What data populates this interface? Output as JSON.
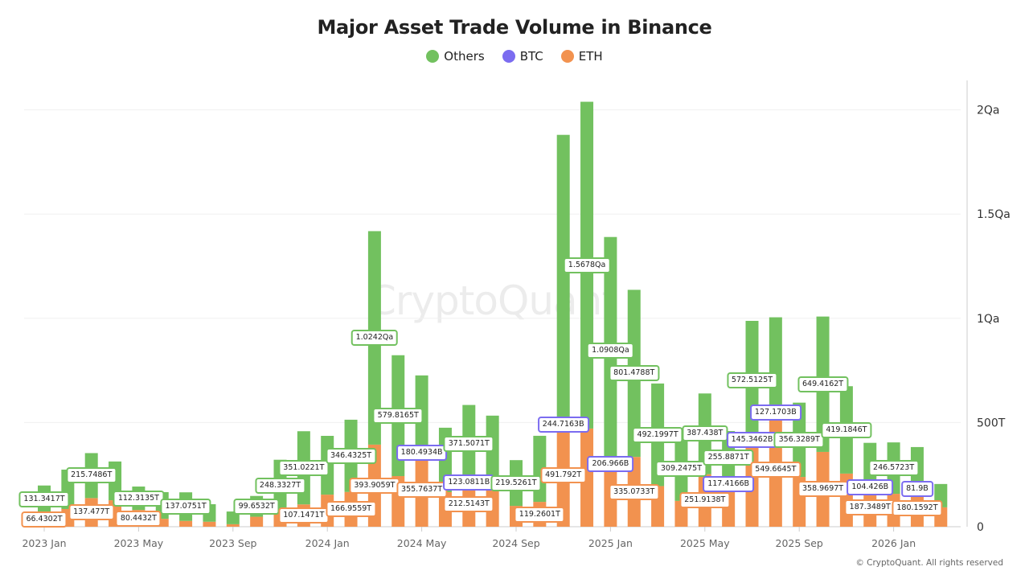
{
  "chart_data": {
    "type": "bar",
    "stacked": true,
    "title": "Major Asset Trade Volume in Binance",
    "unit": "T",
    "legend": {
      "placement": "top",
      "entries": [
        "Others",
        "BTC",
        "ETH"
      ]
    },
    "colors": {
      "Others": "#72c15f",
      "BTC": "#7b6cf0",
      "ETH": "#f2924f"
    },
    "grid": true,
    "ylim": [
      0,
      2150
    ],
    "y_ticks": [
      {
        "value": 0,
        "label": "0"
      },
      {
        "value": 500,
        "label": "500T"
      },
      {
        "value": 1000,
        "label": "1Qa"
      },
      {
        "value": 1500,
        "label": "1.5Qa"
      },
      {
        "value": 2000,
        "label": "2Qa"
      }
    ],
    "x_ticks": [
      {
        "index": 0,
        "label": "2023 Jan"
      },
      {
        "index": 4,
        "label": "2023 May"
      },
      {
        "index": 8,
        "label": "2023 Sep"
      },
      {
        "index": 12,
        "label": "2024 Jan"
      },
      {
        "index": 16,
        "label": "2024 May"
      },
      {
        "index": 20,
        "label": "2024 Sep"
      },
      {
        "index": 24,
        "label": "2025 Jan"
      },
      {
        "index": 28,
        "label": "2025 May"
      },
      {
        "index": 32,
        "label": "2025 Sep"
      },
      {
        "index": 36,
        "label": "2026 Jan"
      }
    ],
    "categories": [
      "2023-01",
      "2023-02",
      "2023-03",
      "2023-04",
      "2023-05",
      "2023-06",
      "2023-07",
      "2023-08",
      "2023-09",
      "2023-10",
      "2023-11",
      "2023-12",
      "2024-01",
      "2024-02",
      "2024-03",
      "2024-04",
      "2024-05",
      "2024-06",
      "2024-07",
      "2024-08",
      "2024-09",
      "2024-10",
      "2024-11",
      "2024-12",
      "2025-01",
      "2025-02",
      "2025-03",
      "2025-04",
      "2025-05",
      "2025-06",
      "2025-07",
      "2025-08",
      "2025-09",
      "2025-10",
      "2025-11",
      "2025-12",
      "2026-01",
      "2026-02",
      "2026-03"
    ],
    "series": [
      {
        "name": "ETH",
        "values": [
          66.4302,
          85,
          137.477,
          127,
          80.4432,
          38,
          28,
          24,
          12,
          48,
          73,
          107.1471,
          154,
          166.9559,
          393.9059,
          243,
          355.7637,
          166,
          212.5143,
          178,
          100,
          119.2601,
          491.792,
          471,
          299,
          335.0733,
          195,
          124,
          251.9138,
          203,
          415,
          549.6645,
          239,
          358.9697,
          255,
          187.3489,
          158,
          180.1592,
          93
        ],
        "labels": [
          "66.4302T",
          null,
          "137.477T",
          null,
          "80.4432T",
          null,
          null,
          null,
          null,
          null,
          null,
          "107.1471T",
          null,
          "166.9559T",
          "393.9059T",
          null,
          "355.7637T",
          null,
          "212.5143T",
          null,
          null,
          "119.2601T",
          "491.792T",
          null,
          null,
          "335.0733T",
          null,
          null,
          "251.9138T",
          null,
          null,
          "549.6645T",
          null,
          "358.9697T",
          null,
          "187.3489T",
          null,
          "180.1592T",
          null
        ]
      },
      {
        "name": "BTC",
        "values": [
          null,
          null,
          null,
          null,
          null,
          null,
          null,
          null,
          null,
          null,
          null,
          null,
          null,
          null,
          null,
          null,
          0.1805,
          null,
          0.1231,
          null,
          null,
          null,
          0.2447,
          null,
          0.207,
          null,
          null,
          null,
          null,
          0.1174,
          0.1453,
          0.1272,
          null,
          null,
          null,
          0.1044,
          null,
          0.0819,
          null
        ],
        "labels": [
          null,
          null,
          null,
          null,
          null,
          null,
          null,
          null,
          null,
          null,
          null,
          null,
          null,
          null,
          null,
          null,
          "180.4934B",
          null,
          "123.0811B",
          null,
          null,
          null,
          "244.7163B",
          null,
          "206.966B",
          null,
          null,
          null,
          null,
          "117.4166B",
          "145.3462B",
          "127.1703B",
          null,
          null,
          null,
          "104.426B",
          null,
          "81.9B",
          null
        ]
      },
      {
        "name": "Others",
        "values": [
          131.3417,
          189,
          215.7486,
          186,
          112.3135,
          128,
          137.0751,
          84,
          61,
          99.6532,
          248.3327,
          351.0221,
          282,
          346.4325,
          1024.2,
          579.8165,
          370,
          309,
          371.5071,
          355,
          219.5261,
          317,
          1388,
          1567.8,
          1090.8,
          801.4788,
          492.1997,
          309.2475,
          387.438,
          255.8871,
          572.5125,
          455,
          356.3289,
          649.4162,
          419.1846,
          215,
          246.5723,
          202,
          112
        ],
        "labels": [
          "131.3417T",
          null,
          "215.7486T",
          null,
          "112.3135T",
          null,
          "137.0751T",
          null,
          null,
          "99.6532T",
          "248.3327T",
          "351.0221T",
          null,
          "346.4325T",
          "1.0242Qa",
          "579.8165T",
          null,
          null,
          "371.5071T",
          null,
          "219.5261T",
          null,
          null,
          "1.5678Qa",
          "1.0908Qa",
          "801.4788T",
          "492.1997T",
          "309.2475T",
          "387.438T",
          "255.8871T",
          "572.5125T",
          null,
          "356.3289T",
          "649.4162T",
          "419.1846T",
          null,
          "246.5723T",
          null,
          null
        ]
      }
    ]
  },
  "watermark": "CryptoQuant",
  "copyright": "© CryptoQuant. All rights reserved"
}
